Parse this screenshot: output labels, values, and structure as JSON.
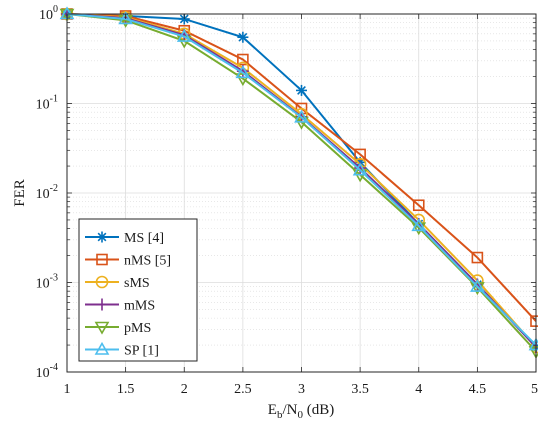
{
  "chart_data": {
    "type": "line",
    "xlabel": "E_b/N_0 (dB)",
    "xlabel_parts": {
      "main": "E",
      "sub1": "b",
      "mid": "/N",
      "sub2": "0",
      "tail": " (dB)"
    },
    "ylabel": "FER",
    "x_scale": "linear",
    "y_scale": "log",
    "xlim": [
      1,
      5
    ],
    "ylim": [
      0.0001,
      1
    ],
    "grid": true,
    "minor_grid": true,
    "legend_position": "bottom-left",
    "x_ticks": [
      1,
      1.5,
      2,
      2.5,
      3,
      3.5,
      4,
      4.5,
      5
    ],
    "x_tick_labels": [
      "1",
      "1.5",
      "2",
      "2.5",
      "3",
      "3.5",
      "4",
      "4.5",
      "5"
    ],
    "y_ticks": [
      {
        "value": 0.0001,
        "base": "10",
        "exp": "-4"
      },
      {
        "value": 0.001,
        "base": "10",
        "exp": "-3"
      },
      {
        "value": 0.01,
        "base": "10",
        "exp": "-2"
      },
      {
        "value": 0.1,
        "base": "10",
        "exp": "-1"
      },
      {
        "value": 1,
        "base": "10",
        "exp": "0"
      }
    ],
    "x": [
      1,
      1.5,
      2,
      2.5,
      3,
      3.5,
      4,
      4.5,
      5
    ],
    "series": [
      {
        "name": "MS [4]",
        "color": "#0072BD",
        "marker": "asterisk",
        "values": [
          1.0,
          0.95,
          0.88,
          0.55,
          0.14,
          0.022,
          0.0045,
          0.00095,
          0.00019
        ]
      },
      {
        "name": "nMS [5]",
        "color": "#D95319",
        "marker": "square",
        "values": [
          1.0,
          0.95,
          0.65,
          0.31,
          0.088,
          0.027,
          0.0073,
          0.0019,
          0.00037
        ]
      },
      {
        "name": "sMS",
        "color": "#EDB120",
        "marker": "circle",
        "values": [
          1.0,
          0.92,
          0.6,
          0.25,
          0.076,
          0.021,
          0.005,
          0.00105,
          0.00019
        ]
      },
      {
        "name": "mMS",
        "color": "#7E2F8E",
        "marker": "plus",
        "values": [
          1.0,
          0.9,
          0.58,
          0.23,
          0.071,
          0.019,
          0.0045,
          0.00095,
          0.00019
        ]
      },
      {
        "name": "pMS",
        "color": "#77AC30",
        "marker": "triangle-down",
        "values": [
          1.0,
          0.85,
          0.5,
          0.19,
          0.062,
          0.016,
          0.0041,
          0.00088,
          0.00017
        ]
      },
      {
        "name": "SP [1]",
        "color": "#4DBEEE",
        "marker": "triangle-up",
        "values": [
          1.0,
          0.88,
          0.56,
          0.22,
          0.07,
          0.018,
          0.0043,
          0.0009,
          0.0002
        ]
      }
    ]
  }
}
